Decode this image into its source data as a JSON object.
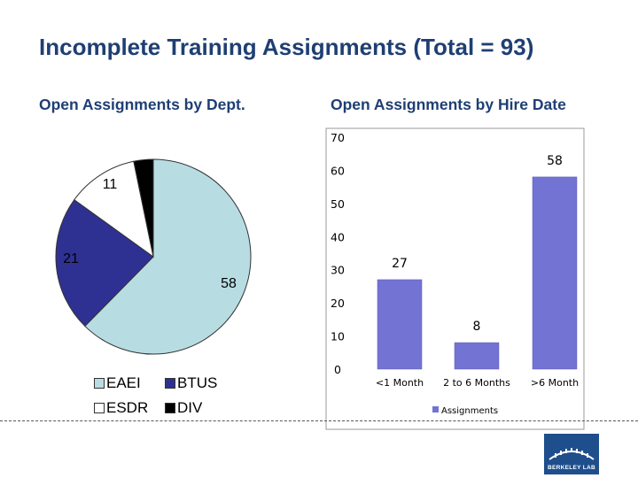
{
  "title": "Incomplete Training Assignments (Total = 93)",
  "logo_text": "BERKELEY LAB",
  "chart_data": [
    {
      "type": "pie",
      "title": "Open Assignments by Dept.",
      "slices": [
        {
          "label": "EAEI",
          "value": 58,
          "color": "#b7dde3"
        },
        {
          "label": "BTUS",
          "value": 21,
          "color": "#2e3192"
        },
        {
          "label": "ESDR",
          "value": 11,
          "color": "#ffffff"
        },
        {
          "label": "DIV",
          "value": 3,
          "color": "#000000"
        }
      ],
      "data_labels": [
        "58",
        "21",
        "11"
      ],
      "legend": {
        "position": "bottom",
        "entries": [
          "EAEI",
          "BTUS",
          "ESDR",
          "DIV"
        ]
      }
    },
    {
      "type": "bar",
      "title": "Open Assignments by Hire Date",
      "categories": [
        "<1 Month",
        "2 to 6 Months",
        ">6 Month"
      ],
      "series": [
        {
          "name": "Assignments",
          "values": [
            27,
            8,
            58
          ],
          "color": "#7373d4"
        }
      ],
      "ylim": [
        0,
        70
      ],
      "yticks": [
        "0",
        "10",
        "20",
        "30",
        "40",
        "50",
        "60",
        "70"
      ],
      "grid": false,
      "legend": {
        "position": "bottom"
      }
    }
  ]
}
